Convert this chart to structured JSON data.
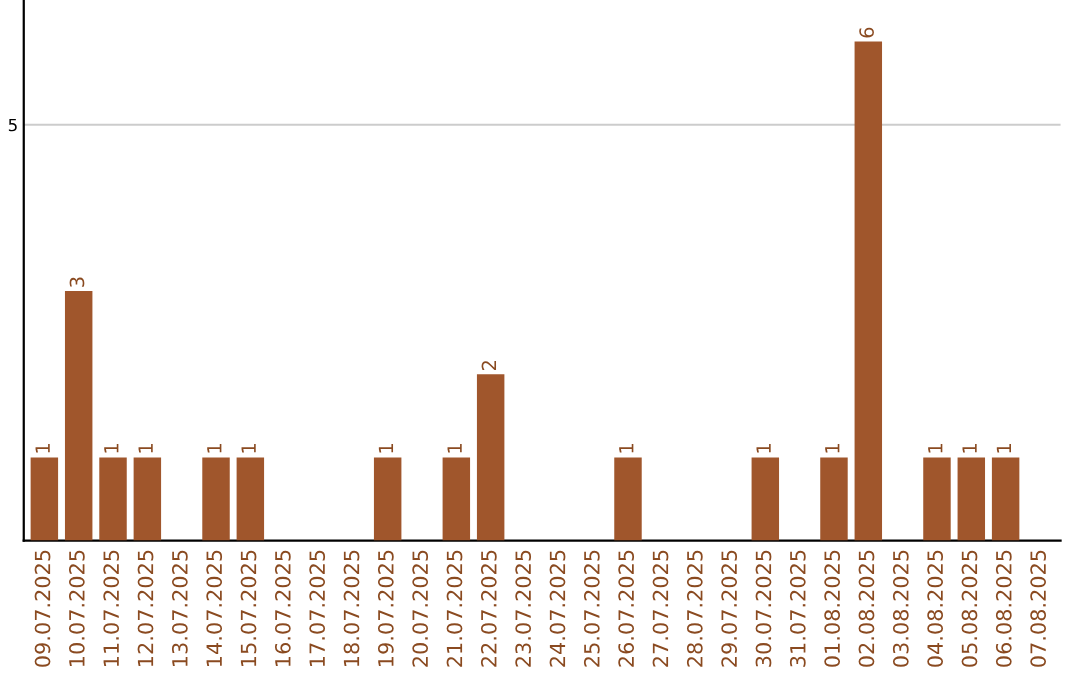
{
  "chart_data": {
    "type": "bar",
    "categories": [
      "09.07.2025",
      "10.07.2025",
      "11.07.2025",
      "12.07.2025",
      "13.07.2025",
      "14.07.2025",
      "15.07.2025",
      "16.07.2025",
      "17.07.2025",
      "18.07.2025",
      "19.07.2025",
      "20.07.2025",
      "21.07.2025",
      "22.07.2025",
      "23.07.2025",
      "24.07.2025",
      "25.07.2025",
      "26.07.2025",
      "27.07.2025",
      "28.07.2025",
      "29.07.2025",
      "30.07.2025",
      "31.07.2025",
      "01.08.2025",
      "02.08.2025",
      "03.08.2025",
      "04.08.2025",
      "05.08.2025",
      "06.08.2025",
      "07.08.2025"
    ],
    "values": [
      1,
      3,
      1,
      1,
      0,
      1,
      1,
      0,
      0,
      0,
      1,
      0,
      1,
      2,
      0,
      0,
      0,
      1,
      0,
      0,
      0,
      1,
      0,
      1,
      6,
      0,
      1,
      1,
      1,
      0
    ],
    "value_labels": [
      "1",
      "3",
      "1",
      "1",
      null,
      "1",
      "1",
      null,
      null,
      null,
      "1",
      null,
      "1",
      "2",
      null,
      null,
      null,
      "1",
      null,
      null,
      null,
      "1",
      null,
      "1",
      "6",
      null,
      "1",
      "1",
      "1",
      null
    ],
    "color": "#a0562c",
    "ylim": [
      0,
      6.5
    ],
    "yticks": [
      5
    ],
    "grid": "y"
  }
}
